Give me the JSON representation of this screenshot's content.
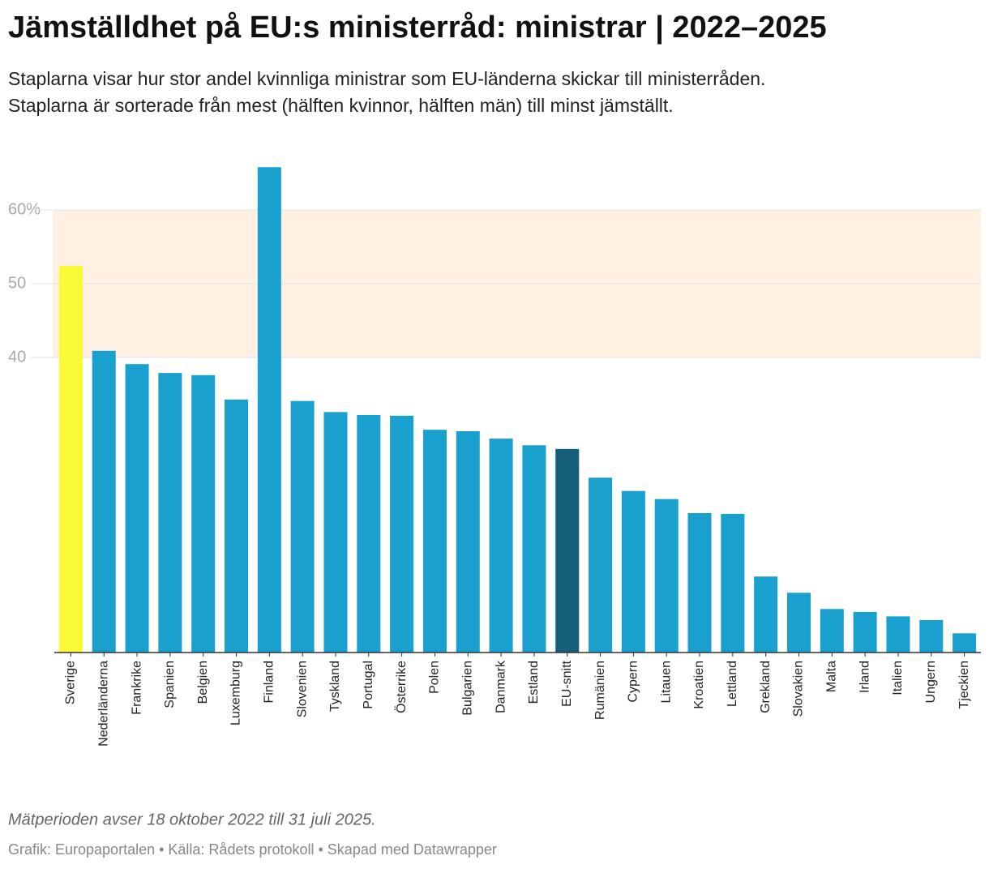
{
  "chart_data": {
    "type": "bar",
    "title": "Jämställdhet på EU:s ministerråd: ministrar | 2022–2025",
    "subtitle": [
      "Staplarna visar hur stor andel kvinnliga ministrar som EU-länderna skickar till ministerråden.",
      "Staplarna är sorterade från mest (hälften kvinnor, hälften män) till minst jämställt."
    ],
    "categories": [
      "Sverige",
      "Nederländerna",
      "Frankrike",
      "Spanien",
      "Belgien",
      "Luxemburg",
      "Finland",
      "Slovenien",
      "Tyskland",
      "Portugal",
      "Österrike",
      "Polen",
      "Bulgarien",
      "Danmark",
      "Estland",
      "EU-snitt",
      "Rumänien",
      "Cypern",
      "Litauen",
      "Kroatien",
      "Lettland",
      "Grekland",
      "Slovakien",
      "Malta",
      "Irland",
      "Italien",
      "Ungern",
      "Tjeckien"
    ],
    "values": [
      52.4,
      40.9,
      39.1,
      37.9,
      37.6,
      34.3,
      65.8,
      34.1,
      32.6,
      32.2,
      32.1,
      30.2,
      30.0,
      29.0,
      28.1,
      27.6,
      23.7,
      21.9,
      20.8,
      18.9,
      18.8,
      10.3,
      8.1,
      5.9,
      5.5,
      4.9,
      4.4,
      2.6
    ],
    "colors": [
      "#f9f936",
      "#1aa0ce",
      "#1aa0ce",
      "#1aa0ce",
      "#1aa0ce",
      "#1aa0ce",
      "#1aa0ce",
      "#1aa0ce",
      "#1aa0ce",
      "#1aa0ce",
      "#1aa0ce",
      "#1aa0ce",
      "#1aa0ce",
      "#1aa0ce",
      "#1aa0ce",
      "#155f7a",
      "#1aa0ce",
      "#1aa0ce",
      "#1aa0ce",
      "#1aa0ce",
      "#1aa0ce",
      "#1aa0ce",
      "#1aa0ce",
      "#1aa0ce",
      "#1aa0ce",
      "#1aa0ce",
      "#1aa0ce",
      "#1aa0ce"
    ],
    "ylim": [
      0,
      66
    ],
    "yticks": [
      40,
      50,
      {
        "value": 60,
        "label": "60%"
      }
    ],
    "shaded_range": [
      40,
      60
    ],
    "shaded_color": "#fef1e4",
    "grid": true,
    "note": "Mätperioden avser 18 oktober 2022 till 31 juli 2025.",
    "credits": "Grafik: Europaportalen • Källa: Rådets protokoll • Skapad med Datawrapper"
  }
}
